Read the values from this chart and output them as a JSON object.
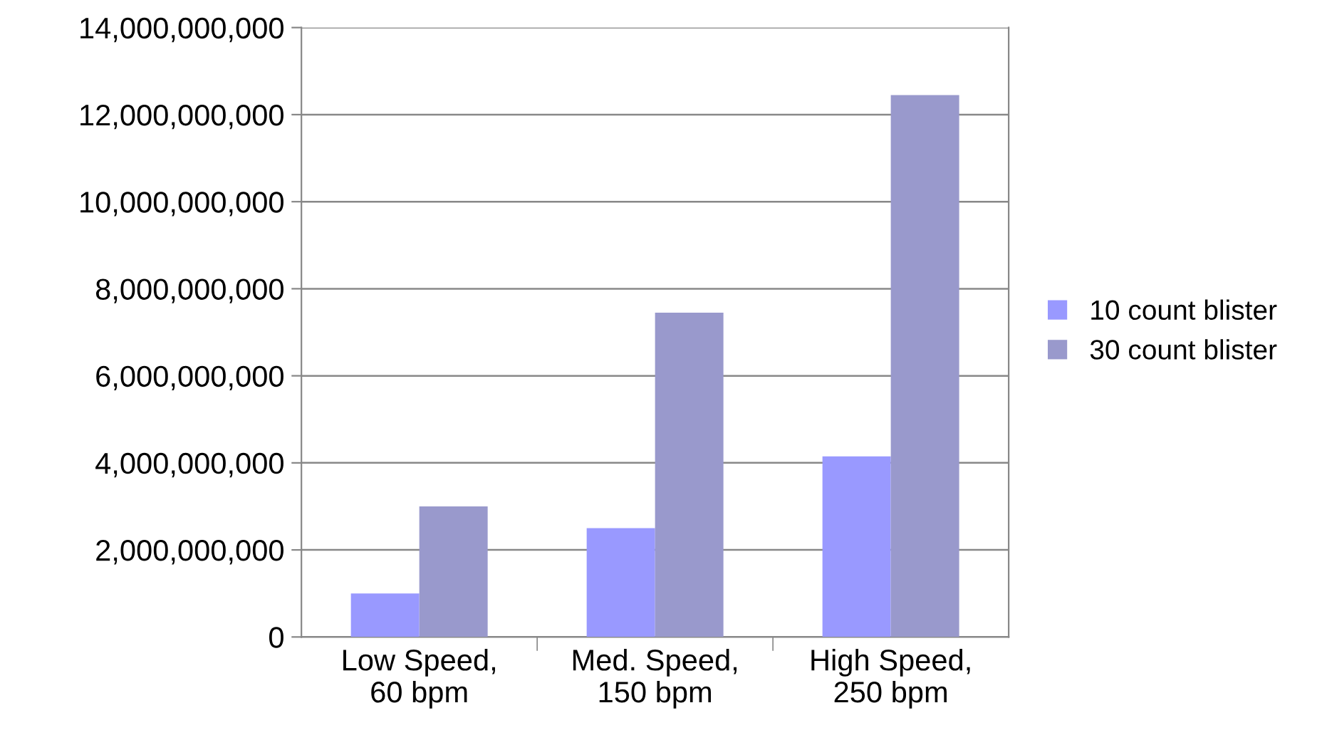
{
  "chart_data": {
    "type": "bar",
    "categories": [
      "Low Speed,\n60 bpm",
      "Med. Speed,\n150 bpm",
      "High Speed,\n250 bpm"
    ],
    "series": [
      {
        "name": "10 count blister",
        "color": "#9999ff",
        "values": [
          1000000000,
          2500000000,
          4150000000
        ]
      },
      {
        "name": "30 count blister",
        "color": "#9999cc",
        "values": [
          3000000000,
          7450000000,
          12450000000
        ]
      }
    ],
    "ylim": [
      0,
      14000000000
    ],
    "yticks": [
      0,
      {
        "value": 2000000000,
        "label": "2,000,000,000"
      },
      {
        "value": 4000000000,
        "label": "4,000,000,000"
      },
      {
        "value": 6000000000,
        "label": "6,000,000,000"
      },
      {
        "value": 8000000000,
        "label": "8,000,000,000"
      },
      {
        "value": 10000000000,
        "label": "10,000,000,000"
      },
      {
        "value": 12000000000,
        "label": "12,000,000,000"
      },
      {
        "value": 14000000000,
        "label": "14,000,000,000"
      }
    ],
    "grid": "y",
    "legend": "right"
  }
}
